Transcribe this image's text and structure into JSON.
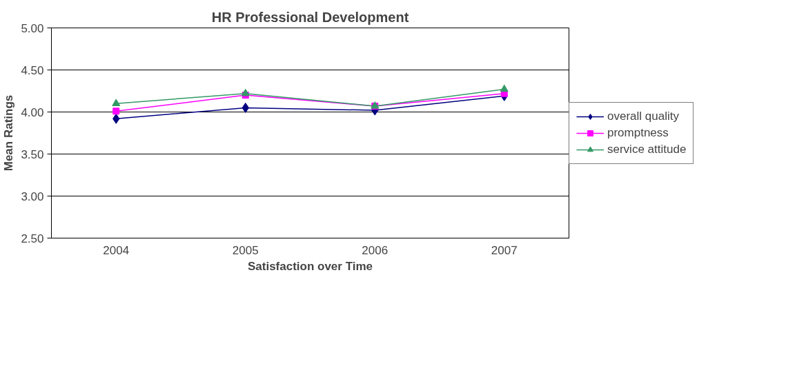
{
  "chart_data": {
    "type": "line",
    "title": "HR Professional Development",
    "xlabel": "Satisfaction over Time",
    "ylabel": "Mean Ratings",
    "categories": [
      "2004",
      "2005",
      "2006",
      "2007"
    ],
    "series": [
      {
        "name": "overall quality",
        "color": "#000080",
        "marker": "diamond",
        "values": [
          3.92,
          4.05,
          4.02,
          4.19
        ]
      },
      {
        "name": "promptness",
        "color": "#ff00ff",
        "marker": "square",
        "values": [
          4.01,
          4.2,
          4.07,
          4.22
        ]
      },
      {
        "name": "service attitude",
        "color": "#339966",
        "marker": "triangle",
        "values": [
          4.1,
          4.22,
          4.07,
          4.27
        ]
      }
    ],
    "ylim": [
      2.5,
      5.0
    ],
    "yticks": [
      {
        "value": 2.5,
        "label": "2.50"
      },
      {
        "value": 3.0,
        "label": "3.00"
      },
      {
        "value": 3.5,
        "label": "3.50"
      },
      {
        "value": 4.0,
        "label": "4.00"
      },
      {
        "value": 4.5,
        "label": "4.50"
      },
      {
        "value": 5.0,
        "label": "5.00"
      }
    ],
    "grid": "y",
    "legend": "right",
    "line_style": "solid"
  }
}
